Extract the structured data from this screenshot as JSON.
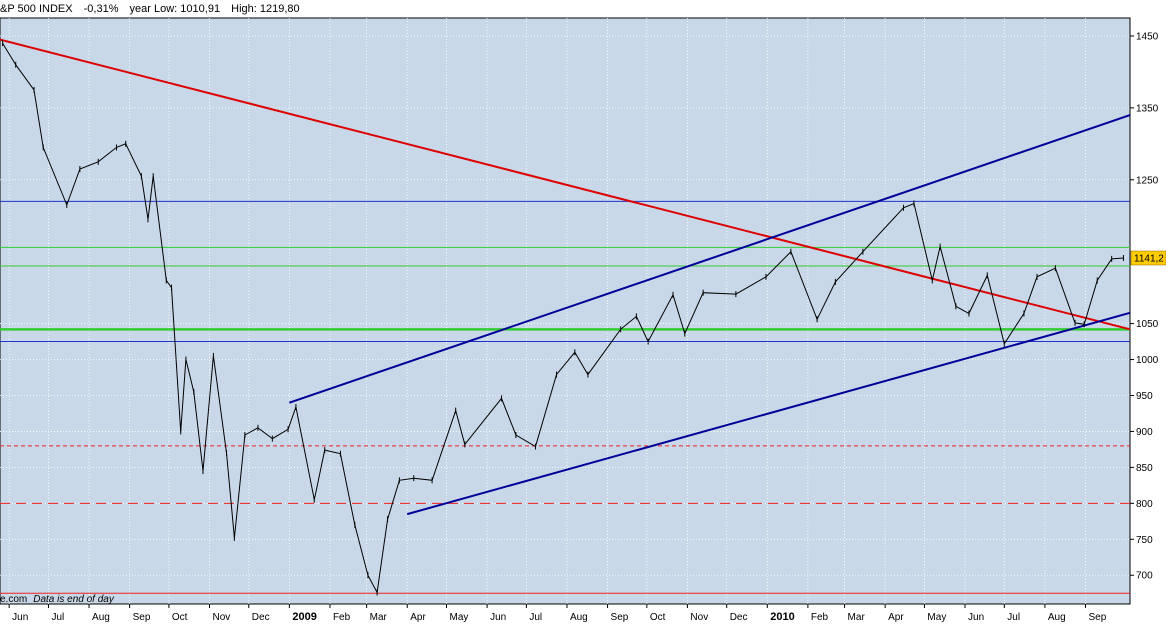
{
  "header": {
    "title": "&P 500 INDEX",
    "change": "-0,31%",
    "low": "year Low: 1010,91",
    "high": "High: 1219,80"
  },
  "footer": {
    "source": "e.com",
    "note": "Data is end of day"
  },
  "colors": {
    "plot_bg": "#c8d8e8",
    "price": "#000000",
    "trend_red": "#dd0000",
    "channel_blue": "#000099",
    "h_blue": "#2233cc",
    "h_green": "#33cc33",
    "h_red": "#ee2222",
    "badge": "#ffcc00"
  },
  "chart_data": {
    "type": "line",
    "title": "&P 500 INDEX",
    "current_value": 1141.2,
    "current_value_label": "1141,2",
    "ylim": [
      660,
      1475
    ],
    "xlim": [
      "2008-05-25",
      "2010-10-05"
    ],
    "grid": true,
    "y_ticks": [
      {
        "value": 1450,
        "label": "1450"
      },
      {
        "value": 1350,
        "label": "1350"
      },
      {
        "value": 1250,
        "label": "1250"
      },
      {
        "value": 1050,
        "label": "1050"
      },
      {
        "value": 1000,
        "label": "1000"
      },
      {
        "value": 950,
        "label": "950"
      },
      {
        "value": 900,
        "label": "900"
      },
      {
        "value": 850,
        "label": "850"
      },
      {
        "value": 800,
        "label": "800"
      },
      {
        "value": 750,
        "label": "750"
      },
      {
        "value": 700,
        "label": "700"
      }
    ],
    "x_ticks": [
      {
        "date": "2008-06-01",
        "label": "Jun",
        "year": false
      },
      {
        "date": "2008-07-01",
        "label": "Jul",
        "year": false
      },
      {
        "date": "2008-08-01",
        "label": "Aug",
        "year": false
      },
      {
        "date": "2008-09-01",
        "label": "Sep",
        "year": false
      },
      {
        "date": "2008-10-01",
        "label": "Oct",
        "year": false
      },
      {
        "date": "2008-11-01",
        "label": "Nov",
        "year": false
      },
      {
        "date": "2008-12-01",
        "label": "Dec",
        "year": false
      },
      {
        "date": "2009-01-01",
        "label": "2009",
        "year": true
      },
      {
        "date": "2009-02-01",
        "label": "Feb",
        "year": false
      },
      {
        "date": "2009-03-01",
        "label": "Mar",
        "year": false
      },
      {
        "date": "2009-04-01",
        "label": "Apr",
        "year": false
      },
      {
        "date": "2009-05-01",
        "label": "May",
        "year": false
      },
      {
        "date": "2009-06-01",
        "label": "Jun",
        "year": false
      },
      {
        "date": "2009-07-01",
        "label": "Jul",
        "year": false
      },
      {
        "date": "2009-08-01",
        "label": "Aug",
        "year": false
      },
      {
        "date": "2009-09-01",
        "label": "Sep",
        "year": false
      },
      {
        "date": "2009-10-01",
        "label": "Oct",
        "year": false
      },
      {
        "date": "2009-11-01",
        "label": "Nov",
        "year": false
      },
      {
        "date": "2009-12-01",
        "label": "Dec",
        "year": false
      },
      {
        "date": "2010-01-01",
        "label": "2010",
        "year": true
      },
      {
        "date": "2010-02-01",
        "label": "Feb",
        "year": false
      },
      {
        "date": "2010-03-01",
        "label": "Mar",
        "year": false
      },
      {
        "date": "2010-04-01",
        "label": "Apr",
        "year": false
      },
      {
        "date": "2010-05-01",
        "label": "May",
        "year": false
      },
      {
        "date": "2010-06-01",
        "label": "Jun",
        "year": false
      },
      {
        "date": "2010-07-01",
        "label": "Jul",
        "year": false
      },
      {
        "date": "2010-08-01",
        "label": "Aug",
        "year": false
      },
      {
        "date": "2010-09-01",
        "label": "Sep",
        "year": false
      }
    ],
    "series": [
      {
        "values": [
          [
            "2008-05-27",
            1440
          ],
          [
            "2008-06-06",
            1410
          ],
          [
            "2008-06-20",
            1375
          ],
          [
            "2008-06-27",
            1295
          ],
          [
            "2008-07-15",
            1215
          ],
          [
            "2008-07-25",
            1265
          ],
          [
            "2008-08-08",
            1275
          ],
          [
            "2008-08-22",
            1295
          ],
          [
            "2008-08-29",
            1300
          ],
          [
            "2008-09-10",
            1255
          ],
          [
            "2008-09-15",
            1195
          ],
          [
            "2008-09-19",
            1255
          ],
          [
            "2008-09-29",
            1110
          ],
          [
            "2008-10-03",
            1100
          ],
          [
            "2008-10-10",
            900
          ],
          [
            "2008-10-14",
            1000
          ],
          [
            "2008-10-20",
            955
          ],
          [
            "2008-10-27",
            845
          ],
          [
            "2008-11-04",
            1005
          ],
          [
            "2008-11-14",
            870
          ],
          [
            "2008-11-20",
            752
          ],
          [
            "2008-11-28",
            895
          ],
          [
            "2008-12-08",
            905
          ],
          [
            "2008-12-19",
            890
          ],
          [
            "2008-12-31",
            903
          ],
          [
            "2009-01-06",
            934
          ],
          [
            "2009-01-20",
            805
          ],
          [
            "2009-01-28",
            874
          ],
          [
            "2009-02-09",
            869
          ],
          [
            "2009-02-20",
            770
          ],
          [
            "2009-03-02",
            700
          ],
          [
            "2009-03-09",
            676
          ],
          [
            "2009-03-17",
            778
          ],
          [
            "2009-03-26",
            832
          ],
          [
            "2009-04-06",
            835
          ],
          [
            "2009-04-20",
            832
          ],
          [
            "2009-05-08",
            929
          ],
          [
            "2009-05-15",
            882
          ],
          [
            "2009-06-12",
            946
          ],
          [
            "2009-06-23",
            895
          ],
          [
            "2009-07-08",
            879
          ],
          [
            "2009-07-24",
            979
          ],
          [
            "2009-08-07",
            1010
          ],
          [
            "2009-08-17",
            979
          ],
          [
            "2009-09-11",
            1042
          ],
          [
            "2009-09-23",
            1060
          ],
          [
            "2009-10-02",
            1025
          ],
          [
            "2009-10-21",
            1090
          ],
          [
            "2009-10-30",
            1036
          ],
          [
            "2009-11-13",
            1093
          ],
          [
            "2009-12-08",
            1091
          ],
          [
            "2009-12-31",
            1115
          ],
          [
            "2010-01-19",
            1150
          ],
          [
            "2010-02-08",
            1056
          ],
          [
            "2010-02-22",
            1108
          ],
          [
            "2010-03-15",
            1150
          ],
          [
            "2010-04-15",
            1211
          ],
          [
            "2010-04-23",
            1217
          ],
          [
            "2010-05-07",
            1110
          ],
          [
            "2010-05-13",
            1157
          ],
          [
            "2010-05-25",
            1074
          ],
          [
            "2010-06-04",
            1064
          ],
          [
            "2010-06-18",
            1117
          ],
          [
            "2010-07-01",
            1022
          ],
          [
            "2010-07-16",
            1064
          ],
          [
            "2010-07-26",
            1115
          ],
          [
            "2010-08-09",
            1127
          ],
          [
            "2010-08-24",
            1051
          ],
          [
            "2010-08-31",
            1049
          ],
          [
            "2010-09-10",
            1110
          ],
          [
            "2010-09-21",
            1140
          ],
          [
            "2010-09-30",
            1141.2
          ]
        ]
      }
    ],
    "trendlines": [
      {
        "color": "red",
        "from": [
          "2008-05-25",
          1445
        ],
        "to": [
          "2010-10-05",
          1042
        ]
      },
      {
        "color": "blue",
        "from": [
          "2009-01-01",
          940
        ],
        "to": [
          "2010-10-05",
          1340
        ]
      },
      {
        "color": "blue",
        "from": [
          "2009-04-01",
          785
        ],
        "to": [
          "2010-10-05",
          1065
        ]
      }
    ],
    "horizontal_lines": [
      {
        "value": 1220,
        "color": "blue",
        "style": "solid",
        "width": 1
      },
      {
        "value": 1156,
        "color": "green",
        "style": "solid",
        "width": 1
      },
      {
        "value": 1130,
        "color": "green",
        "style": "solid",
        "width": 1
      },
      {
        "value": 1042,
        "color": "green",
        "style": "solid",
        "width": 2.5
      },
      {
        "value": 1025,
        "color": "blue",
        "style": "solid",
        "width": 1
      },
      {
        "value": 880,
        "color": "red",
        "style": "dashed",
        "width": 1
      },
      {
        "value": 800,
        "color": "red",
        "style": "dashed-long",
        "width": 1
      },
      {
        "value": 675,
        "color": "red",
        "style": "solid",
        "width": 1
      }
    ]
  }
}
